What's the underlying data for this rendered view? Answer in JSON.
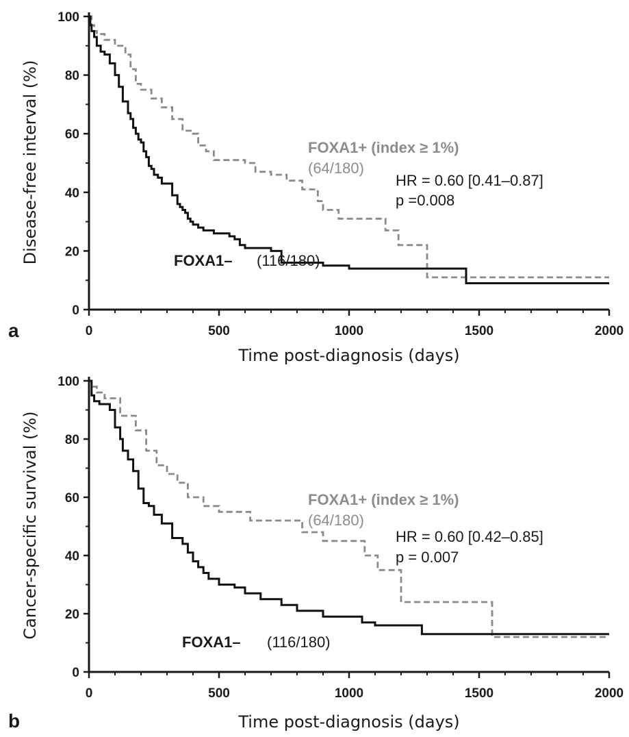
{
  "colors": {
    "negative": "#111111",
    "positive": "#8a8a8a",
    "axis": "#1a1a1a",
    "positive_label": "#8c8c8c"
  },
  "chart_data": [
    {
      "panel": "a",
      "type": "line",
      "xlabel": "Time post-diagnosis (days)",
      "ylabel": "Disease-free interval (%)",
      "xlim": [
        0,
        2000
      ],
      "ylim": [
        0,
        100
      ],
      "xticks": [
        "0",
        "500",
        "1000",
        "1500",
        "2000"
      ],
      "yticks": [
        "0",
        "20",
        "40",
        "60",
        "80",
        "100"
      ],
      "grid": false,
      "step": true,
      "annotations": {
        "positive_label": "FOXA1+ (index ≥ 1%)",
        "positive_count": "(64/180)",
        "hr": "HR = 0.60 [0.41–0.87]",
        "p": "p =0.008",
        "negative_label": "FOXA1–",
        "negative_count": "(116/180)"
      },
      "series": [
        {
          "name": "FOXA1–",
          "style": "solid",
          "x": [
            0,
            5,
            10,
            20,
            30,
            45,
            60,
            80,
            100,
            115,
            130,
            150,
            160,
            170,
            180,
            190,
            200,
            210,
            220,
            230,
            240,
            250,
            265,
            280,
            300,
            320,
            340,
            350,
            360,
            370,
            380,
            390,
            400,
            420,
            440,
            480,
            540,
            560,
            580,
            600,
            700,
            740,
            900,
            1000,
            1450,
            2000
          ],
          "y": [
            100,
            97,
            95,
            93,
            90,
            88,
            87,
            84,
            80,
            76,
            71,
            67,
            65,
            62,
            60,
            58,
            57,
            54,
            52,
            49,
            48,
            46,
            45,
            43,
            43,
            39,
            36,
            35,
            34,
            33,
            31,
            30,
            29,
            28,
            27,
            26,
            25,
            24,
            22,
            21,
            20,
            16,
            15,
            14,
            9,
            9
          ]
        },
        {
          "name": "FOXA1+ (index ≥ 1%)",
          "style": "dashed",
          "x": [
            0,
            10,
            20,
            30,
            60,
            100,
            140,
            160,
            180,
            200,
            240,
            280,
            320,
            360,
            400,
            420,
            450,
            480,
            600,
            640,
            700,
            760,
            820,
            880,
            900,
            960,
            1140,
            1190,
            1300,
            2000
          ],
          "y": [
            100,
            97,
            95,
            94,
            92,
            90,
            87,
            82,
            77,
            75,
            72,
            69,
            65,
            61,
            60,
            56,
            54,
            51,
            50,
            47,
            46,
            44,
            41,
            37,
            34,
            31,
            27,
            22,
            11,
            11
          ]
        }
      ]
    },
    {
      "panel": "b",
      "type": "line",
      "xlabel": "Time post-diagnosis (days)",
      "ylabel": "Cancer-specific survival (%)",
      "xlim": [
        0,
        2000
      ],
      "ylim": [
        0,
        100
      ],
      "xticks": [
        "0",
        "500",
        "1000",
        "1500",
        "2000"
      ],
      "yticks": [
        "0",
        "20",
        "40",
        "60",
        "80",
        "100"
      ],
      "grid": false,
      "step": true,
      "annotations": {
        "positive_label": "FOXA1+ (index ≥ 1%)",
        "positive_count": "(64/180)",
        "hr": "HR = 0.60 [0.42–0.85]",
        "p": "p = 0.007",
        "negative_label": "FOXA1–",
        "negative_count": "(116/180)"
      },
      "series": [
        {
          "name": "FOXA1–",
          "style": "solid",
          "x": [
            0,
            10,
            20,
            40,
            80,
            100,
            120,
            130,
            150,
            170,
            190,
            210,
            230,
            250,
            280,
            320,
            360,
            380,
            400,
            420,
            440,
            460,
            500,
            560,
            600,
            660,
            740,
            800,
            900,
            1050,
            1100,
            1280,
            2000
          ],
          "y": [
            100,
            95,
            93,
            92,
            90,
            84,
            80,
            76,
            73,
            69,
            63,
            58,
            57,
            54,
            51,
            46,
            44,
            41,
            38,
            36,
            34,
            32,
            30,
            29,
            27,
            25,
            23,
            21,
            19,
            17,
            16,
            13,
            13
          ]
        },
        {
          "name": "FOXA1+ (index ≥ 1%)",
          "style": "dashed",
          "x": [
            0,
            10,
            30,
            60,
            120,
            180,
            220,
            260,
            300,
            340,
            380,
            440,
            500,
            620,
            820,
            900,
            1060,
            1110,
            1200,
            1550,
            2000
          ],
          "y": [
            100,
            98,
            96,
            94,
            88,
            83,
            76,
            71,
            68,
            65,
            60,
            57,
            55,
            52,
            48,
            45,
            40,
            35,
            24,
            12,
            12
          ]
        }
      ]
    }
  ]
}
